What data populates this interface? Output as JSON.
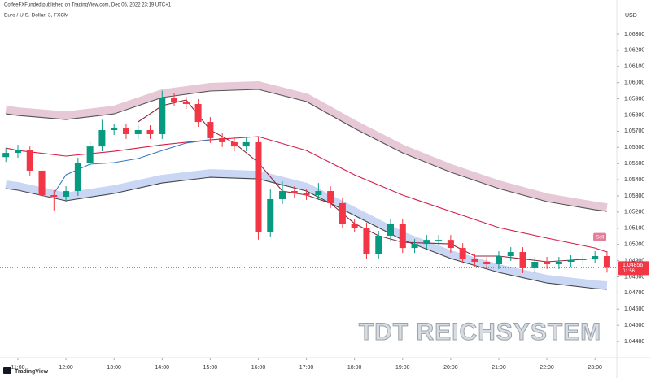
{
  "chart_data": {
    "type": "candlestick",
    "header": "CoffeeFXFunded published on TradingView.com, Dec 05, 2022 23:19 UTC+1",
    "title": "Euro / U.S. Dollar, 3, FXCM",
    "y_axis_label": "USD",
    "watermark": "TDT REICHSYSTEM",
    "logo": "TradingView",
    "annotation": "Sell",
    "annotation_x": 23.1,
    "annotation_price": 1.0499,
    "last_price": {
      "value": 1.04856,
      "label": "1.04856"
    },
    "countdown": "01:56",
    "up_color": "#089981",
    "down_color": "#f23645",
    "x": [
      10.75,
      11,
      11.25,
      11.5,
      11.75,
      12,
      12.25,
      12.5,
      12.75,
      13,
      13.25,
      13.5,
      13.75,
      14,
      14.25,
      14.5,
      14.75,
      15,
      15.25,
      15.5,
      15.75,
      16,
      16.25,
      16.5,
      16.75,
      17,
      17.25,
      17.5,
      17.75,
      18,
      18.25,
      18.5,
      18.75,
      19,
      19.25,
      19.5,
      19.75,
      20,
      20.25,
      20.5,
      20.75,
      21,
      21.25,
      21.5,
      21.75,
      22,
      22.25,
      22.5,
      22.75,
      23,
      23.25
    ],
    "open": [
      1.0554,
      1.05566,
      1.05586,
      1.05456,
      1.05305,
      1.05295,
      1.0533,
      1.05506,
      1.05606,
      1.05707,
      1.05717,
      1.05682,
      1.05707,
      1.05682,
      1.05908,
      1.05883,
      1.05868,
      1.05757,
      1.05657,
      1.05632,
      1.05606,
      1.05632,
      1.05079,
      1.0528,
      1.0533,
      1.05315,
      1.05305,
      1.0533,
      1.05255,
      1.05129,
      1.05104,
      1.04943,
      1.05054,
      1.05129,
      1.04978,
      1.05003,
      1.05028,
      1.05028,
      1.04978,
      1.04913,
      1.04893,
      1.04878,
      1.04928,
      1.04953,
      1.04853,
      1.04893,
      1.04878,
      1.04893,
      1.04903,
      1.04913,
      1.04928
    ],
    "high": [
      1.05596,
      1.05616,
      1.05606,
      1.05476,
      1.05335,
      1.0536,
      1.05536,
      1.05636,
      1.0577,
      1.05747,
      1.05747,
      1.05737,
      1.05737,
      1.0595,
      1.05938,
      1.05913,
      1.05898,
      1.05787,
      1.05687,
      1.05662,
      1.05662,
      1.05662,
      1.0534,
      1.0539,
      1.0536,
      1.05345,
      1.0538,
      1.0536,
      1.05285,
      1.05159,
      1.05134,
      1.05084,
      1.05159,
      1.05159,
      1.05033,
      1.05058,
      1.05058,
      1.05058,
      1.05008,
      1.04943,
      1.04923,
      1.04958,
      1.04983,
      1.04983,
      1.04923,
      1.04923,
      1.04923,
      1.04933,
      1.04943,
      1.04958,
      1.04958
    ],
    "low": [
      1.0551,
      1.05536,
      1.05426,
      1.05275,
      1.0521,
      1.05265,
      1.053,
      1.05476,
      1.05576,
      1.05677,
      1.05652,
      1.05652,
      1.05652,
      1.05652,
      1.05853,
      1.05838,
      1.05727,
      1.05627,
      1.05602,
      1.05576,
      1.05576,
      1.0503,
      1.05049,
      1.0525,
      1.05285,
      1.05275,
      1.05275,
      1.05225,
      1.05099,
      1.05074,
      1.04913,
      1.04913,
      1.05024,
      1.04948,
      1.04948,
      1.04973,
      1.04998,
      1.04948,
      1.04883,
      1.04863,
      1.04848,
      1.04848,
      1.04898,
      1.04823,
      1.04823,
      1.04848,
      1.04848,
      1.04863,
      1.04873,
      1.04883,
      1.04826
    ],
    "close": [
      1.05566,
      1.05586,
      1.05456,
      1.05305,
      1.05295,
      1.0533,
      1.05506,
      1.05606,
      1.05707,
      1.05717,
      1.05682,
      1.05707,
      1.05682,
      1.05908,
      1.05883,
      1.05868,
      1.05757,
      1.05657,
      1.05632,
      1.05606,
      1.05632,
      1.05079,
      1.0528,
      1.0533,
      1.05315,
      1.05305,
      1.0533,
      1.05255,
      1.05129,
      1.05104,
      1.04943,
      1.05054,
      1.05129,
      1.04978,
      1.05003,
      1.05028,
      1.05028,
      1.04978,
      1.04913,
      1.04893,
      1.04878,
      1.04928,
      1.04953,
      1.04853,
      1.04893,
      1.04878,
      1.04893,
      1.04903,
      1.04913,
      1.04928,
      1.04856
    ],
    "lines": [
      {
        "color": "#555555",
        "band": "#e6c8d6",
        "band_side": -1,
        "x": [
          10.75,
          11,
          12,
          13,
          14,
          15,
          16,
          17,
          18,
          19,
          20,
          21,
          22,
          23,
          23.25
        ],
        "values": [
          1.05807,
          1.05797,
          1.05772,
          1.05807,
          1.05908,
          1.05948,
          1.05958,
          1.05883,
          1.05717,
          1.05566,
          1.05446,
          1.05345,
          1.05265,
          1.05214,
          1.05204
        ]
      },
      {
        "color": "#444444",
        "band": "#c9d7f5",
        "band_side": -1,
        "x": [
          10.75,
          11,
          12,
          13,
          14,
          15,
          16,
          17,
          18,
          19,
          20,
          21,
          22,
          23,
          23.25
        ],
        "values": [
          1.05345,
          1.05335,
          1.0527,
          1.05315,
          1.0538,
          1.05415,
          1.05405,
          1.0533,
          1.05179,
          1.05028,
          1.04913,
          1.04827,
          1.04762,
          1.04727,
          1.04722
        ]
      },
      {
        "color": "#d81b47",
        "x": [
          10.75,
          11,
          12,
          13,
          14,
          15,
          16,
          17,
          18,
          19,
          20,
          21,
          22,
          23,
          23.25
        ],
        "values": [
          1.05596,
          1.05581,
          1.05546,
          1.05576,
          1.05616,
          1.05647,
          1.05667,
          1.05581,
          1.0543,
          1.05305,
          1.05204,
          1.05104,
          1.05039,
          1.04978,
          1.04953
        ]
      },
      {
        "color": "#3a78c2",
        "x": [
          11.75,
          12,
          12.5,
          13,
          13.5,
          14,
          14.5,
          15
        ],
        "values": [
          1.05315,
          1.0543,
          1.05496,
          1.05506,
          1.05531,
          1.05581,
          1.05627,
          1.05647
        ]
      },
      {
        "color": "#8e2a3a",
        "x": [
          13.5,
          14,
          14.5,
          15,
          15.5,
          16,
          16.5,
          17,
          17.5,
          18,
          18.5,
          19,
          20,
          20.5,
          21,
          22,
          23
        ],
        "values": [
          1.05757,
          1.05858,
          1.05893,
          1.05707,
          1.05627,
          1.05506,
          1.0533,
          1.05305,
          1.05255,
          1.05129,
          1.05054,
          1.05013,
          1.05003,
          1.04928,
          1.04928,
          1.04893,
          1.04913
        ]
      }
    ],
    "xlim": [
      10.628,
      23.454
    ],
    "ylim": [
      1.043,
      1.06511
    ],
    "xticks": [
      {
        "value": 11,
        "label": "11:00"
      },
      {
        "value": 12,
        "label": "12:00"
      },
      {
        "value": 13,
        "label": "13:00"
      },
      {
        "value": 14,
        "label": "14:00"
      },
      {
        "value": 15,
        "label": "15:00"
      },
      {
        "value": 16,
        "label": "16:00"
      },
      {
        "value": 17,
        "label": "17:00"
      },
      {
        "value": 18,
        "label": "18:00"
      },
      {
        "value": 19,
        "label": "19:00"
      },
      {
        "value": 20,
        "label": "20:00"
      },
      {
        "value": 21,
        "label": "21:00"
      },
      {
        "value": 22,
        "label": "22:00"
      },
      {
        "value": 23,
        "label": "23:00"
      }
    ],
    "yticks": [
      {
        "value": 1.063,
        "label": "1.06300"
      },
      {
        "value": 1.062,
        "label": "1.06200"
      },
      {
        "value": 1.061,
        "label": "1.06100"
      },
      {
        "value": 1.06,
        "label": "1.06000"
      },
      {
        "value": 1.059,
        "label": "1.05900"
      },
      {
        "value": 1.058,
        "label": "1.05800"
      },
      {
        "value": 1.057,
        "label": "1.05700"
      },
      {
        "value": 1.056,
        "label": "1.05600"
      },
      {
        "value": 1.055,
        "label": "1.05500"
      },
      {
        "value": 1.054,
        "label": "1.05400"
      },
      {
        "value": 1.053,
        "label": "1.05300"
      },
      {
        "value": 1.052,
        "label": "1.05200"
      },
      {
        "value": 1.051,
        "label": "1.05100"
      },
      {
        "value": 1.05,
        "label": "1.05000"
      },
      {
        "value": 1.049,
        "label": "1.04900"
      },
      {
        "value": 1.048,
        "label": "1.04800"
      },
      {
        "value": 1.047,
        "label": "1.04700"
      },
      {
        "value": 1.046,
        "label": "1.04600"
      },
      {
        "value": 1.045,
        "label": "1.04500"
      },
      {
        "value": 1.044,
        "label": "1.04400"
      }
    ]
  }
}
